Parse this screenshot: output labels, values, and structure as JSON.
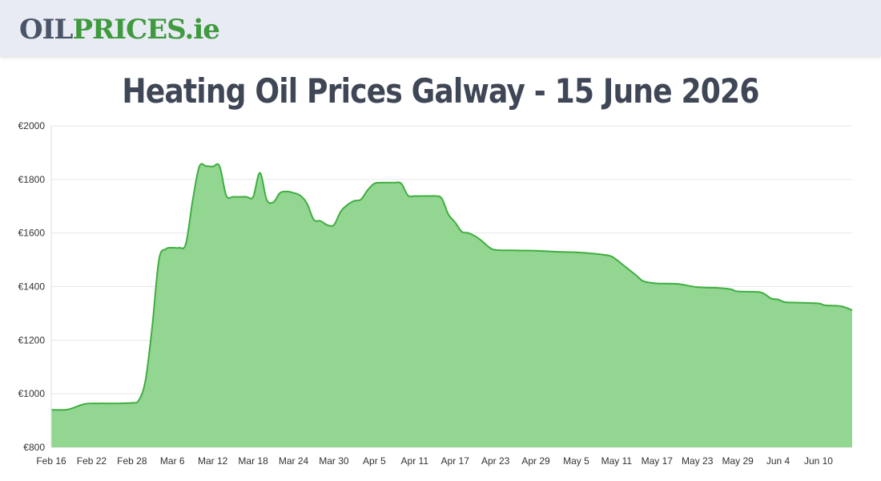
{
  "header": {
    "logo_part1": "OIL",
    "logo_part2": "PRICES.ie"
  },
  "page": {
    "title": "Heating Oil Prices Galway - 15 June 2026"
  },
  "colors": {
    "line": "#3fae3f",
    "fill": "#92d692",
    "grid": "#e6e6e6",
    "logo_dark": "#4a5468",
    "logo_green": "#3f9a3f",
    "title": "#3f4756"
  },
  "chart_data": {
    "type": "area",
    "title": "",
    "xlabel": "",
    "ylabel": "",
    "ylim": [
      800,
      2000
    ],
    "grid": true,
    "legend": "none",
    "y_ticks": [
      800,
      1000,
      1200,
      1400,
      1600,
      1800,
      2000
    ],
    "y_tick_labels": [
      "€800",
      "€1000",
      "€1200",
      "€1400",
      "€1600",
      "€1800",
      "€2000"
    ],
    "x_tick_labels": [
      "Feb 16",
      "Feb 22",
      "Feb 28",
      "Mar 6",
      "Mar 12",
      "Mar 18",
      "Mar 24",
      "Mar 30",
      "Apr 5",
      "Apr 11",
      "Apr 17",
      "Apr 23",
      "Apr 29",
      "May 5",
      "May 11",
      "May 17",
      "May 23",
      "May 29",
      "Jun 4",
      "Jun 10"
    ],
    "x_start": "2026-02-16",
    "x_end": "2026-06-15",
    "series": [
      {
        "name": "",
        "points": [
          [
            "2026-02-16",
            940
          ],
          [
            "2026-02-18",
            940
          ],
          [
            "2026-02-19",
            945
          ],
          [
            "2026-02-21",
            962
          ],
          [
            "2026-02-23",
            964
          ],
          [
            "2026-02-26",
            964
          ],
          [
            "2026-02-28",
            966
          ],
          [
            "2026-03-01",
            975
          ],
          [
            "2026-03-02",
            1050
          ],
          [
            "2026-03-03",
            1250
          ],
          [
            "2026-03-04",
            1500
          ],
          [
            "2026-03-05",
            1540
          ],
          [
            "2026-03-06",
            1545
          ],
          [
            "2026-03-07",
            1545
          ],
          [
            "2026-03-08",
            1560
          ],
          [
            "2026-03-09",
            1720
          ],
          [
            "2026-03-10",
            1848
          ],
          [
            "2026-03-11",
            1850
          ],
          [
            "2026-03-12",
            1848
          ],
          [
            "2026-03-13",
            1850
          ],
          [
            "2026-03-14",
            1740
          ],
          [
            "2026-03-15",
            1735
          ],
          [
            "2026-03-16",
            1735
          ],
          [
            "2026-03-17",
            1735
          ],
          [
            "2026-03-18",
            1735
          ],
          [
            "2026-03-19",
            1825
          ],
          [
            "2026-03-20",
            1725
          ],
          [
            "2026-03-21",
            1715
          ],
          [
            "2026-03-22",
            1750
          ],
          [
            "2026-03-23",
            1755
          ],
          [
            "2026-03-24",
            1750
          ],
          [
            "2026-03-25",
            1740
          ],
          [
            "2026-03-26",
            1710
          ],
          [
            "2026-03-27",
            1650
          ],
          [
            "2026-03-28",
            1645
          ],
          [
            "2026-03-29",
            1630
          ],
          [
            "2026-03-30",
            1630
          ],
          [
            "2026-03-31",
            1680
          ],
          [
            "2026-04-01",
            1705
          ],
          [
            "2026-04-02",
            1720
          ],
          [
            "2026-04-03",
            1725
          ],
          [
            "2026-04-04",
            1760
          ],
          [
            "2026-04-05",
            1785
          ],
          [
            "2026-04-06",
            1788
          ],
          [
            "2026-04-07",
            1788
          ],
          [
            "2026-04-08",
            1788
          ],
          [
            "2026-04-09",
            1785
          ],
          [
            "2026-04-10",
            1740
          ],
          [
            "2026-04-11",
            1738
          ],
          [
            "2026-04-12",
            1738
          ],
          [
            "2026-04-13",
            1738
          ],
          [
            "2026-04-14",
            1738
          ],
          [
            "2026-04-15",
            1730
          ],
          [
            "2026-04-16",
            1670
          ],
          [
            "2026-04-17",
            1640
          ],
          [
            "2026-04-18",
            1605
          ],
          [
            "2026-04-19",
            1600
          ],
          [
            "2026-04-20",
            1588
          ],
          [
            "2026-04-21",
            1570
          ],
          [
            "2026-04-22",
            1548
          ],
          [
            "2026-04-23",
            1537
          ],
          [
            "2026-04-26",
            1535
          ],
          [
            "2026-04-29",
            1534
          ],
          [
            "2026-05-02",
            1530
          ],
          [
            "2026-05-05",
            1528
          ],
          [
            "2026-05-08",
            1522
          ],
          [
            "2026-05-10",
            1515
          ],
          [
            "2026-05-11",
            1500
          ],
          [
            "2026-05-12",
            1480
          ],
          [
            "2026-05-14",
            1440
          ],
          [
            "2026-05-15",
            1420
          ],
          [
            "2026-05-17",
            1412
          ],
          [
            "2026-05-20",
            1410
          ],
          [
            "2026-05-23",
            1398
          ],
          [
            "2026-05-26",
            1395
          ],
          [
            "2026-05-28",
            1390
          ],
          [
            "2026-05-29",
            1382
          ],
          [
            "2026-06-01",
            1380
          ],
          [
            "2026-06-02",
            1372
          ],
          [
            "2026-06-03",
            1355
          ],
          [
            "2026-06-04",
            1352
          ],
          [
            "2026-06-05",
            1342
          ],
          [
            "2026-06-07",
            1340
          ],
          [
            "2026-06-10",
            1337
          ],
          [
            "2026-06-11",
            1330
          ],
          [
            "2026-06-13",
            1328
          ],
          [
            "2026-06-14",
            1322
          ],
          [
            "2026-06-15",
            1312
          ]
        ]
      }
    ]
  }
}
